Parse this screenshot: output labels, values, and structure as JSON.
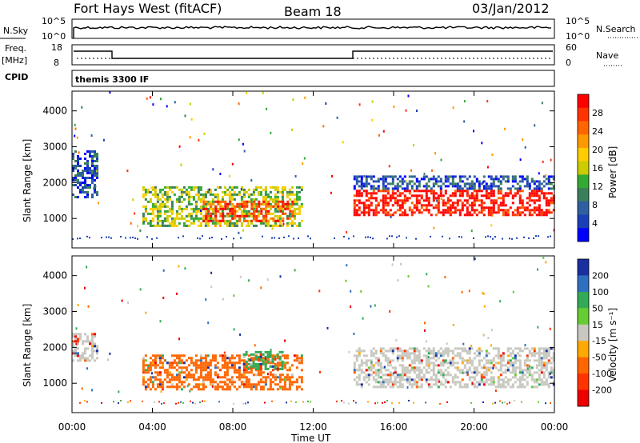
{
  "header": {
    "title": "Fort Hays West (fitACF)",
    "beam": "Beam 18",
    "date": "03/Jan/2012"
  },
  "status_panels": {
    "nsky": {
      "label": "N.Sky",
      "ticks": [
        "10^5",
        "10^0"
      ]
    },
    "nsearch": {
      "label": "N.Search",
      "ticks": [
        "10^5",
        "10^0"
      ]
    },
    "freq": {
      "label_top": "Freq.",
      "label_bottom": "[MHz]",
      "ticks": [
        "18",
        "8"
      ]
    },
    "nave": {
      "label": "Nave",
      "ticks": [
        "60",
        "0"
      ]
    },
    "cpid": {
      "label": "CPID",
      "value": "themis 3300 IF"
    }
  },
  "time_axis": {
    "label": "Time UT",
    "ticks": [
      "00:00",
      "04:00",
      "08:00",
      "12:00",
      "16:00",
      "20:00",
      "00:00"
    ]
  },
  "chart_data": [
    {
      "type": "heatmap",
      "name": "power",
      "ylabel": "Slant Range [km]",
      "y_ticks": [
        1000,
        2000,
        3000,
        4000
      ],
      "ylim": [
        180,
        4550
      ],
      "xlim": [
        0,
        24
      ],
      "colorbar": {
        "label": "Power [dB]",
        "tick_labels": [
          "28",
          "24",
          "20",
          "16",
          "12",
          "8",
          "4"
        ],
        "colors": [
          "#ff0000",
          "#ff3300",
          "#ff6600",
          "#ff9900",
          "#ffcc00",
          "#cccc00",
          "#33aa33",
          "#3a7f5a",
          "#2e5fa0",
          "#1a3fb8",
          "#0000ff"
        ]
      },
      "features": [
        {
          "t_start": 0.0,
          "t_end": 1.2,
          "range_low": 1600,
          "range_high": 2900,
          "level_db": 6
        },
        {
          "t_start": 3.5,
          "t_end": 11.5,
          "range_low": 800,
          "range_high": 1900,
          "level_db": 14
        },
        {
          "t_start": 6.5,
          "t_end": 11.0,
          "range_low": 900,
          "range_high": 1500,
          "level_db": 24
        },
        {
          "t_start": 14.0,
          "t_end": 24.0,
          "range_low": 1100,
          "range_high": 1800,
          "level_db": 28
        },
        {
          "t_start": 14.0,
          "t_end": 24.0,
          "range_low": 1800,
          "range_high": 2200,
          "level_db": 6
        }
      ]
    },
    {
      "type": "heatmap",
      "name": "velocity",
      "ylabel": "Slant Range [km]",
      "y_ticks": [
        1000,
        2000,
        3000,
        4000
      ],
      "ylim": [
        180,
        4550
      ],
      "xlim": [
        0,
        24
      ],
      "colorbar": {
        "label": "Velocity [m s⁻¹]",
        "tick_labels": [
          "200",
          "100",
          "50",
          "15",
          "-15",
          "-50",
          "-100",
          "-200"
        ],
        "colors": [
          "#1a2fa0",
          "#2e6fbf",
          "#33aa55",
          "#66cc33",
          "#c8c8c0",
          "#ffaa00",
          "#ff6600",
          "#ff3300",
          "#ee0000"
        ]
      },
      "features": [
        {
          "t_start": 0.0,
          "t_end": 1.2,
          "range_low": 1600,
          "range_high": 2400,
          "velocity": 0
        },
        {
          "t_start": 3.5,
          "t_end": 11.5,
          "range_low": 800,
          "range_high": 1800,
          "velocity": -60
        },
        {
          "t_start": 8.5,
          "t_end": 10.5,
          "range_low": 1400,
          "range_high": 1900,
          "velocity": 40
        },
        {
          "t_start": 14.0,
          "t_end": 24.0,
          "range_low": 900,
          "range_high": 2000,
          "velocity": 0
        }
      ]
    }
  ]
}
